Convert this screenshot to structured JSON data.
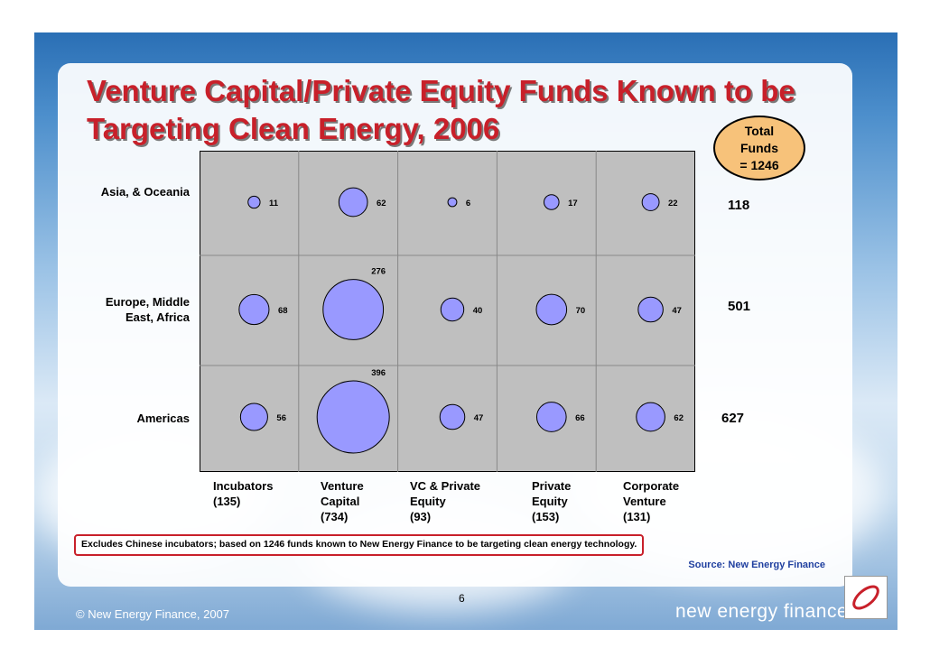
{
  "title_line1": "Venture Capital/Private Equity Funds Known to be",
  "title_line2": "Targeting Clean Energy, 2006",
  "total_badge": {
    "line1": "Total",
    "line2": "Funds",
    "line3": "= 1246"
  },
  "chart_data": {
    "type": "bubble",
    "rows": [
      "Asia, & Oceania",
      "Europe, Middle East, Africa",
      "Americas"
    ],
    "row_label_lines": [
      [
        "Asia, & Oceania"
      ],
      [
        "Europe, Middle",
        "East, Africa"
      ],
      [
        "Americas"
      ]
    ],
    "row_totals": [
      "118",
      "501",
      "627"
    ],
    "columns": [
      {
        "name_lines": [
          "Incubators"
        ],
        "total": "(135)"
      },
      {
        "name_lines": [
          "Venture",
          "Capital"
        ],
        "total": "(734)"
      },
      {
        "name_lines": [
          "VC & Private",
          "Equity"
        ],
        "total": "(93)"
      },
      {
        "name_lines": [
          "Private",
          "Equity"
        ],
        "total": "(153)"
      },
      {
        "name_lines": [
          "Corporate",
          "Venture"
        ],
        "total": "(131)"
      }
    ],
    "values": [
      [
        11,
        62,
        6,
        17,
        22
      ],
      [
        68,
        276,
        40,
        70,
        47
      ],
      [
        56,
        396,
        47,
        66,
        62
      ]
    ],
    "bubble_color": "#9999ff",
    "grid_color": "#bfbfbf"
  },
  "note": "Excludes Chinese incubators; based on 1246 funds known to New Energy Finance to be targeting clean energy technology.",
  "source": "Source: New Energy Finance",
  "page_number": "6",
  "footer": {
    "copyright": "© New Energy Finance, 2007",
    "brand": "new energy finance"
  },
  "colors": {
    "title": "#c8202a",
    "accent_blue": "#1f3f9f",
    "badge": "#f7c27a"
  }
}
